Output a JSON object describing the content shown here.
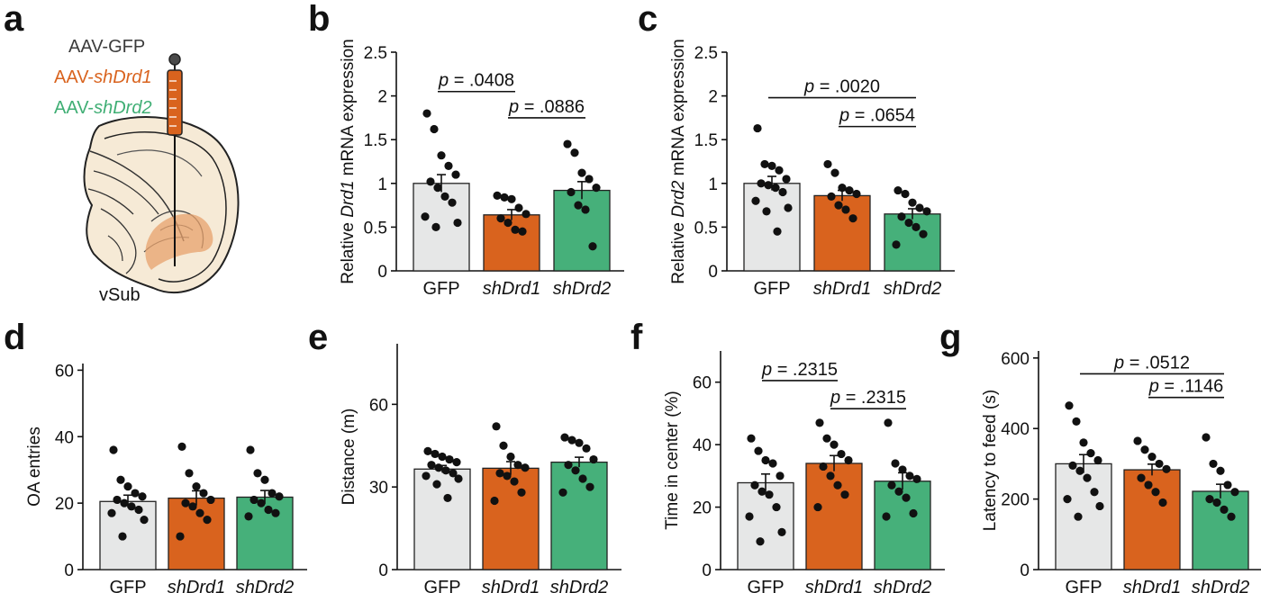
{
  "panel_a": {
    "letter": "a",
    "legend": [
      {
        "prefix": "AAV-",
        "name": "GFP",
        "italic": false,
        "color": "#3b3b3b"
      },
      {
        "prefix": "AAV-",
        "name": "shDrd1",
        "italic": true,
        "color": "#d9631e"
      },
      {
        "prefix": "AAV-",
        "name": "shDrd2",
        "italic": true,
        "color": "#3fae74"
      }
    ],
    "region_label": "vSub"
  },
  "colors": {
    "GFP": "#e6e7e7",
    "shDrd1": "#d9631e",
    "shDrd2": "#46b07a",
    "brain_fill": "#f6ead6",
    "brain_edge": "#222222",
    "target": "#e7a16c"
  },
  "chart_data": [
    {
      "id": "b",
      "letter": "b",
      "type": "bar",
      "categories": [
        "GFP",
        "shDrd1",
        "shDrd2"
      ],
      "italic_categories": [
        false,
        true,
        true
      ],
      "ylabel_parts": [
        {
          "text": "Relative ",
          "italic": false
        },
        {
          "text": "Drd1",
          "italic": true
        },
        {
          "text": " mRNA expression",
          "italic": false
        }
      ],
      "ylim": [
        0,
        2.5
      ],
      "yticks": [
        0,
        0.5,
        1,
        1.5,
        2,
        2.5
      ],
      "ytick_labels": [
        "0",
        "0.5",
        "1",
        "1.5",
        "2",
        "2.5"
      ],
      "means": [
        1.0,
        0.64,
        0.92
      ],
      "sem": [
        0.1,
        0.06,
        0.1
      ],
      "points": [
        [
          1.8,
          1.62,
          1.32,
          1.2,
          1.1,
          1.02,
          0.95,
          0.85,
          0.78,
          0.62,
          0.55,
          0.5
        ],
        [
          0.86,
          0.84,
          0.82,
          0.72,
          0.65,
          0.6,
          0.55,
          0.47,
          0.45
        ],
        [
          1.45,
          1.35,
          1.12,
          1.05,
          0.95,
          0.9,
          0.75,
          0.7,
          0.28
        ]
      ],
      "comparisons": [
        {
          "from": 0,
          "to": 1,
          "label": "p = .0408",
          "y": 2.05
        },
        {
          "from": 1,
          "to": 2,
          "label": "p = .0886",
          "y": 1.75
        }
      ]
    },
    {
      "id": "c",
      "letter": "c",
      "type": "bar",
      "categories": [
        "GFP",
        "shDrd1",
        "shDrd2"
      ],
      "italic_categories": [
        false,
        true,
        true
      ],
      "ylabel_parts": [
        {
          "text": "Relative ",
          "italic": false
        },
        {
          "text": "Drd2",
          "italic": true
        },
        {
          "text": " mRNA expression",
          "italic": false
        }
      ],
      "ylim": [
        0,
        2.5
      ],
      "yticks": [
        0,
        0.5,
        1,
        1.5,
        2,
        2.5
      ],
      "ytick_labels": [
        "0",
        "0.5",
        "1",
        "1.5",
        "2",
        "2.5"
      ],
      "means": [
        1.0,
        0.86,
        0.65
      ],
      "sem": [
        0.08,
        0.06,
        0.06
      ],
      "points": [
        [
          1.63,
          1.22,
          1.2,
          1.15,
          1.05,
          1.0,
          0.98,
          0.95,
          0.9,
          0.8,
          0.72,
          0.68,
          0.45
        ],
        [
          1.22,
          1.12,
          0.95,
          0.92,
          0.88,
          0.85,
          0.75,
          0.7,
          0.6
        ],
        [
          0.92,
          0.88,
          0.78,
          0.72,
          0.68,
          0.62,
          0.55,
          0.5,
          0.42,
          0.3
        ]
      ],
      "comparisons": [
        {
          "from": 0,
          "to": 2,
          "label": "p = .0020",
          "y": 1.98
        },
        {
          "from": 1,
          "to": 2,
          "label": "p = .0654",
          "y": 1.65
        }
      ]
    },
    {
      "id": "d",
      "letter": "d",
      "type": "bar",
      "categories": [
        "GFP",
        "shDrd1",
        "shDrd2"
      ],
      "italic_categories": [
        false,
        true,
        true
      ],
      "ylabel_parts": [
        {
          "text": "OA entries",
          "italic": false
        }
      ],
      "ylim": [
        0,
        62
      ],
      "yticks": [
        0,
        20,
        40,
        60
      ],
      "ytick_labels": [
        "0",
        "20",
        "40",
        "60"
      ],
      "means": [
        20.5,
        21.5,
        21.8
      ],
      "sem": [
        1.9,
        2.2,
        2.0
      ],
      "points": [
        [
          36,
          27,
          25,
          23,
          22,
          21,
          20,
          19,
          18,
          17,
          15,
          10
        ],
        [
          37,
          29,
          25,
          23,
          21,
          20,
          19,
          17,
          15,
          10
        ],
        [
          36,
          29,
          27,
          23,
          22,
          21,
          20,
          18,
          17,
          16
        ]
      ],
      "comparisons": []
    },
    {
      "id": "e",
      "letter": "e",
      "type": "bar",
      "categories": [
        "GFP",
        "shDrd1",
        "shDrd2"
      ],
      "italic_categories": [
        false,
        true,
        true
      ],
      "ylabel_parts": [
        {
          "text": "Distance (m)",
          "italic": false
        }
      ],
      "ylim": [
        0,
        82
      ],
      "yticks": [
        0,
        30,
        60
      ],
      "ytick_labels": [
        "0",
        "30",
        "60"
      ],
      "means": [
        36.5,
        36.8,
        39.0
      ],
      "sem": [
        1.3,
        2.4,
        1.8
      ],
      "points": [
        [
          43,
          42,
          41,
          40,
          39,
          38,
          37,
          36,
          35,
          34,
          33,
          31,
          26
        ],
        [
          52,
          45,
          41,
          38,
          37,
          35,
          34,
          32,
          28,
          25
        ],
        [
          48,
          47,
          46,
          44,
          40,
          38,
          36,
          33,
          30,
          28
        ]
      ],
      "comparisons": []
    },
    {
      "id": "f",
      "letter": "f",
      "type": "bar",
      "categories": [
        "GFP",
        "shDrd1",
        "shDrd2"
      ],
      "italic_categories": [
        false,
        true,
        true
      ],
      "ylabel_parts": [
        {
          "text": "Time in center (%)",
          "italic": false
        }
      ],
      "ylim": [
        0,
        70
      ],
      "yticks": [
        0,
        20,
        40,
        60
      ],
      "ytick_labels": [
        "0",
        "20",
        "40",
        "60"
      ],
      "means": [
        27.8,
        34.0,
        28.3
      ],
      "sem": [
        2.8,
        2.5,
        2.7
      ],
      "points": [
        [
          42,
          38,
          35,
          34,
          30,
          27,
          25,
          24,
          20,
          17,
          12,
          9
        ],
        [
          47,
          42,
          40,
          37,
          35,
          33,
          30,
          27,
          24,
          20
        ],
        [
          47,
          34,
          32,
          30,
          29,
          27,
          25,
          23,
          18,
          17
        ]
      ],
      "comparisons": [
        {
          "from": 0,
          "to": 1,
          "label": "p = .2315",
          "y": 60.5
        },
        {
          "from": 1,
          "to": 2,
          "label": "p = .2315",
          "y": 51.5
        }
      ]
    },
    {
      "id": "g",
      "letter": "g",
      "type": "bar",
      "categories": [
        "GFP",
        "shDrd1",
        "shDrd2"
      ],
      "italic_categories": [
        false,
        true,
        true
      ],
      "ylabel_parts": [
        {
          "text": "Latency to feed (s)",
          "italic": false
        }
      ],
      "ylim": [
        0,
        620
      ],
      "yticks": [
        0,
        200,
        400,
        600
      ],
      "ytick_labels": [
        "0",
        "200",
        "400",
        "600"
      ],
      "means": [
        300,
        283,
        222
      ],
      "sem": [
        26,
        16,
        20
      ],
      "points": [
        [
          465,
          420,
          360,
          330,
          310,
          295,
          280,
          260,
          220,
          200,
          180,
          150
        ],
        [
          365,
          340,
          320,
          300,
          285,
          260,
          240,
          220,
          190
        ],
        [
          375,
          300,
          280,
          240,
          220,
          200,
          190,
          170,
          150
        ]
      ],
      "comparisons": [
        {
          "from": 0,
          "to": 2,
          "label": "p = .0512",
          "y": 555
        },
        {
          "from": 1,
          "to": 2,
          "label": "p = .1146",
          "y": 488
        }
      ]
    }
  ]
}
